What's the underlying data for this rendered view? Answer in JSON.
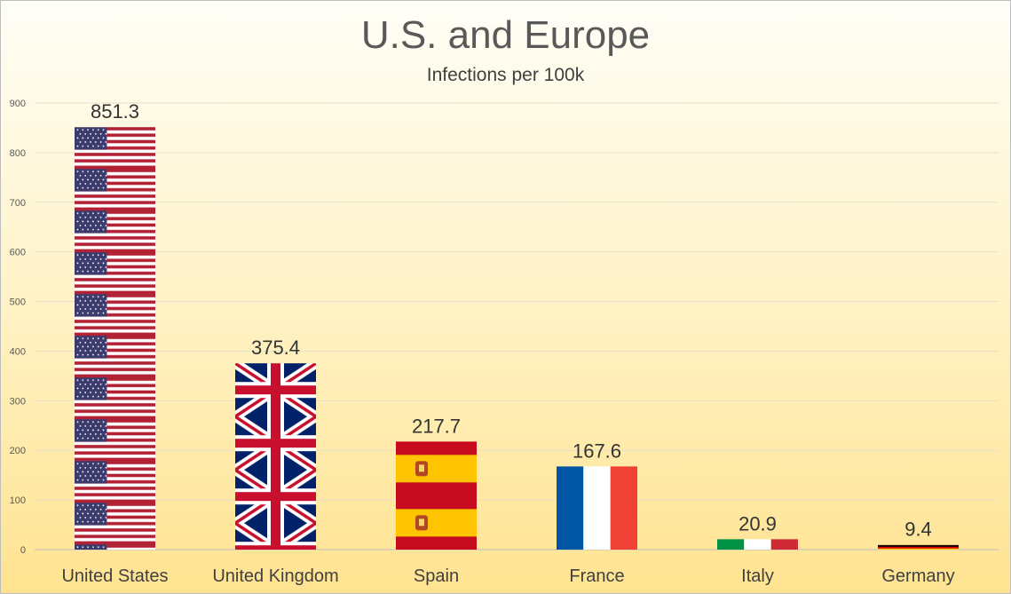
{
  "chart_data": {
    "type": "bar",
    "title": "U.S. and Europe",
    "subtitle": "Infections per 100k",
    "categories": [
      "United States",
      "United Kingdom",
      "Spain",
      "France",
      "Italy",
      "Germany"
    ],
    "values": [
      851.3,
      375.4,
      217.7,
      167.6,
      20.9,
      9.4
    ],
    "value_labels": [
      "851.3",
      "375.4",
      "217.7",
      "167.6",
      "20.9",
      "9.4"
    ],
    "ylim": [
      0,
      900
    ],
    "yticks": [
      0,
      100,
      200,
      300,
      400,
      500,
      600,
      700,
      800,
      900
    ],
    "grid": true,
    "xlabel": "",
    "ylabel": "",
    "bar_fill": "flag pictures (stacked)",
    "colors": {
      "us_red": "#B22234",
      "us_blue": "#3C3B6E",
      "uk_blue": "#012169",
      "uk_red": "#C8102E",
      "es_red": "#C60B1E",
      "es_yellow": "#FFC400",
      "fr_blue": "#0055A4",
      "fr_red": "#EF4135",
      "it_green": "#009246",
      "it_red": "#CE2B37",
      "de_black": "#000000",
      "de_red": "#DD0000",
      "de_gold": "#FFCE00"
    }
  }
}
